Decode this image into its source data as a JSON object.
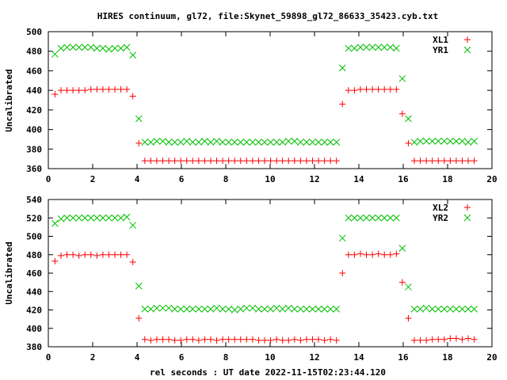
{
  "chart_data": [
    {
      "type": "scatter",
      "title": "HIRES continuum, gl72, file:Skynet_59898_gl72_86633_35423.cyb.txt",
      "xlabel": "",
      "ylabel": "Uncalibrated",
      "xlim": [
        0,
        20
      ],
      "ylim": [
        360,
        500
      ],
      "xticks": [
        0,
        2,
        4,
        6,
        8,
        10,
        12,
        14,
        16,
        18,
        20
      ],
      "yticks": [
        360,
        380,
        400,
        420,
        440,
        460,
        480,
        500
      ],
      "grid": false,
      "legend_position": "top-right",
      "series": [
        {
          "name": "XL1",
          "marker": "plus",
          "color": "#ff0000",
          "values": [
            436,
            440,
            440,
            440,
            440,
            440,
            441,
            441,
            441,
            441,
            441,
            441,
            441,
            434,
            386,
            368,
            368,
            368,
            368,
            368,
            368,
            368,
            368,
            368,
            368,
            368,
            368,
            368,
            368,
            368,
            368,
            368,
            368,
            368,
            368,
            368,
            368,
            368,
            368,
            368,
            368,
            368,
            368,
            368,
            368,
            368,
            368,
            368,
            426,
            440,
            440,
            441,
            441,
            441,
            441,
            441,
            441,
            441,
            416,
            386,
            368,
            368,
            368,
            368,
            368,
            368,
            368,
            368,
            368,
            368,
            368
          ]
        },
        {
          "name": "YR1",
          "marker": "cross",
          "color": "#00c000",
          "values": [
            477,
            483,
            484,
            484,
            484,
            484,
            484,
            483,
            483,
            482,
            483,
            483,
            484,
            476,
            411,
            387,
            387,
            388,
            388,
            387,
            387,
            387,
            388,
            387,
            387,
            388,
            387,
            388,
            387,
            387,
            387,
            387,
            387,
            387,
            387,
            387,
            387,
            387,
            387,
            388,
            388,
            387,
            387,
            387,
            387,
            387,
            387,
            387,
            463,
            483,
            483,
            484,
            484,
            484,
            484,
            484,
            484,
            483,
            452,
            411,
            387,
            388,
            388,
            388,
            388,
            388,
            388,
            388,
            388,
            387,
            388
          ]
        }
      ]
    },
    {
      "type": "scatter",
      "title": "",
      "xlabel": "rel seconds : UT date 2022-11-15T02:23:44.120",
      "ylabel": "Uncalibrated",
      "xlim": [
        0,
        20
      ],
      "ylim": [
        380,
        540
      ],
      "xticks": [
        0,
        2,
        4,
        6,
        8,
        10,
        12,
        14,
        16,
        18,
        20
      ],
      "yticks": [
        380,
        400,
        420,
        440,
        460,
        480,
        500,
        520,
        540
      ],
      "grid": false,
      "legend_position": "top-right",
      "series": [
        {
          "name": "XL2",
          "marker": "plus",
          "color": "#ff0000",
          "values": [
            473,
            479,
            480,
            480,
            479,
            480,
            480,
            479,
            480,
            480,
            480,
            480,
            480,
            472,
            411,
            388,
            387,
            388,
            388,
            388,
            387,
            387,
            388,
            388,
            387,
            388,
            388,
            387,
            388,
            388,
            388,
            388,
            388,
            388,
            387,
            387,
            387,
            388,
            387,
            387,
            388,
            387,
            388,
            388,
            388,
            387,
            388,
            387,
            460,
            480,
            480,
            481,
            480,
            480,
            481,
            480,
            480,
            481,
            450,
            411,
            387,
            387,
            387,
            388,
            388,
            388,
            389,
            389,
            388,
            389,
            388
          ]
        },
        {
          "name": "YR2",
          "marker": "cross",
          "color": "#00c000",
          "values": [
            514,
            519,
            520,
            520,
            520,
            520,
            520,
            520,
            520,
            520,
            520,
            520,
            521,
            512,
            446,
            421,
            421,
            422,
            422,
            422,
            421,
            421,
            421,
            421,
            421,
            421,
            421,
            422,
            421,
            421,
            420,
            421,
            422,
            422,
            421,
            421,
            421,
            422,
            421,
            422,
            421,
            421,
            421,
            421,
            421,
            421,
            421,
            421,
            498,
            520,
            520,
            520,
            520,
            520,
            520,
            520,
            520,
            520,
            487,
            445,
            421,
            421,
            422,
            421,
            421,
            421,
            421,
            421,
            421,
            421,
            421
          ]
        }
      ]
    }
  ],
  "x_values": {
    "start": 0.3,
    "step": 0.27
  }
}
